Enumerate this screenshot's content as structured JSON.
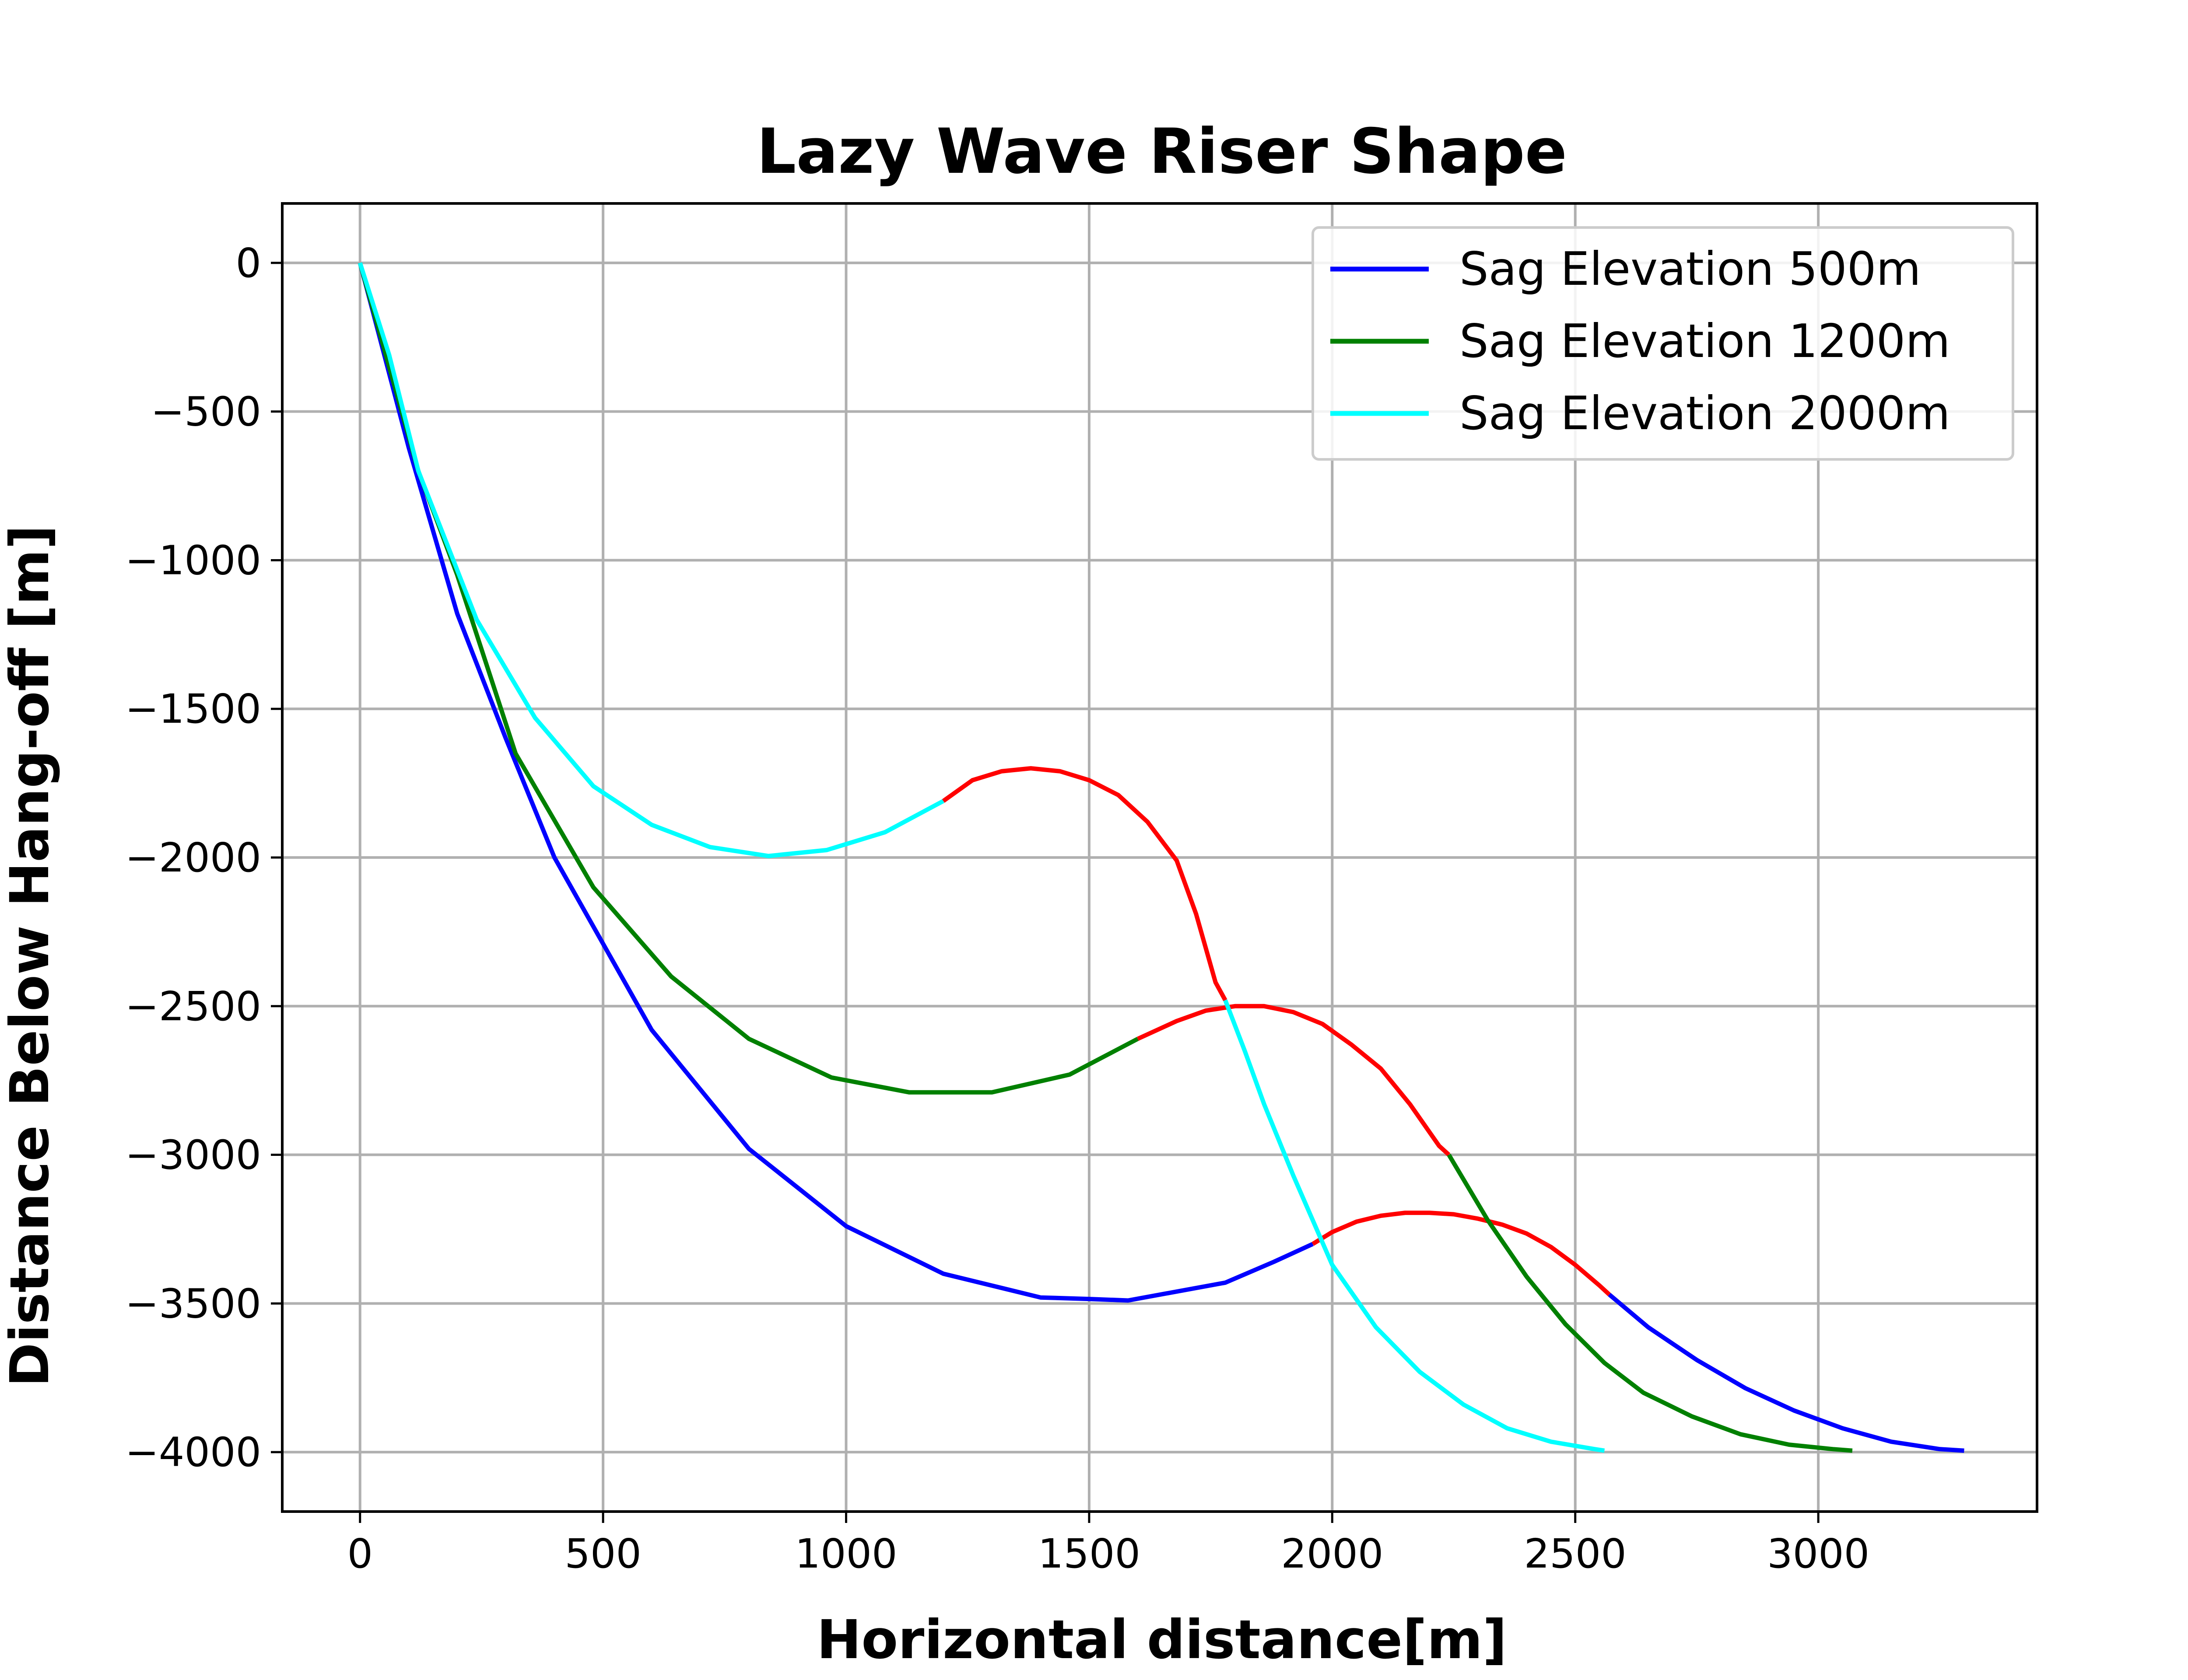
{
  "chart_data": {
    "type": "line",
    "title": "Lazy Wave Riser Shape",
    "xlabel": "Horizontal distance[m]",
    "ylabel": "Distance Below Hang-off [m]",
    "xlim": [
      -160,
      3450
    ],
    "ylim": [
      -4200,
      200
    ],
    "xticks": [
      0,
      500,
      1000,
      1500,
      2000,
      2500,
      3000
    ],
    "yticks": [
      0,
      -500,
      -1000,
      -1500,
      -2000,
      -2500,
      -3000,
      -3500,
      -4000
    ],
    "xtick_labels": [
      "0",
      "500",
      "1000",
      "1500",
      "2000",
      "2500",
      "3000"
    ],
    "ytick_labels": [
      "0",
      "−500",
      "−1000",
      "−1500",
      "−2000",
      "−2500",
      "−3000",
      "−3500",
      "−4000"
    ],
    "grid": true,
    "legend_position": "top-right",
    "buoyancy_color": "#ff0000",
    "series": [
      {
        "name": "Sag Elevation 500m",
        "color": "#0000ff",
        "x": [
          0,
          100,
          200,
          300,
          400,
          500,
          600,
          700,
          800,
          900,
          1000,
          1100,
          1200,
          1300,
          1400,
          1500,
          1580,
          1780,
          1880,
          1960
        ],
        "y": [
          0,
          -620,
          -1180,
          -1600,
          -2000,
          -2290,
          -2580,
          -2780,
          -2980,
          -3110,
          -3240,
          -3320,
          -3400,
          -3440,
          -3480,
          -3485,
          -3490,
          -3430,
          -3360,
          -3300
        ],
        "buoyancy_x": [
          1960,
          2000,
          2050,
          2100,
          2150,
          2200,
          2250,
          2300,
          2350,
          2400,
          2450,
          2500,
          2550,
          2570
        ],
        "buoyancy_y": [
          -3300,
          -3260,
          -3225,
          -3205,
          -3195,
          -3195,
          -3200,
          -3215,
          -3235,
          -3265,
          -3310,
          -3370,
          -3440,
          -3470
        ],
        "tail_x": [
          2570,
          2650,
          2750,
          2850,
          2950,
          3050,
          3150,
          3250,
          3300
        ],
        "tail_y": [
          -3470,
          -3580,
          -3690,
          -3785,
          -3860,
          -3920,
          -3965,
          -3990,
          -3995
        ]
      },
      {
        "name": "Sag Elevation 1200m",
        "color": "#008000",
        "x": [
          0,
          120,
          200,
          320,
          480,
          640,
          800,
          970,
          1130,
          1300,
          1460,
          1600
        ],
        "y": [
          0,
          -700,
          -1050,
          -1650,
          -2100,
          -2400,
          -2610,
          -2740,
          -2790,
          -2790,
          -2730,
          -2610
        ],
        "buoyancy_x": [
          1600,
          1680,
          1740,
          1800,
          1860,
          1920,
          1980,
          2040,
          2100,
          2160,
          2220,
          2240
        ],
        "buoyancy_y": [
          -2610,
          -2550,
          -2515,
          -2500,
          -2500,
          -2520,
          -2560,
          -2630,
          -2710,
          -2830,
          -2970,
          -3000
        ],
        "tail_x": [
          2240,
          2320,
          2400,
          2480,
          2560,
          2640,
          2740,
          2840,
          2940,
          3030,
          3070
        ],
        "tail_y": [
          -3000,
          -3220,
          -3410,
          -3570,
          -3700,
          -3800,
          -3880,
          -3940,
          -3975,
          -3990,
          -3995
        ]
      },
      {
        "name": "Sag Elevation 2000m",
        "color": "#00ffff",
        "x": [
          0,
          60,
          120,
          240,
          360,
          480,
          600,
          720,
          840,
          960,
          1080,
          1200
        ],
        "y": [
          0,
          -310,
          -700,
          -1200,
          -1530,
          -1760,
          -1890,
          -1965,
          -1995,
          -1975,
          -1915,
          -1810
        ],
        "buoyancy_x": [
          1200,
          1260,
          1320,
          1380,
          1440,
          1500,
          1560,
          1620,
          1680,
          1720,
          1760,
          1780
        ],
        "buoyancy_y": [
          -1810,
          -1740,
          -1710,
          -1700,
          -1710,
          -1740,
          -1790,
          -1880,
          -2010,
          -2190,
          -2420,
          -2480
        ],
        "tail_x": [
          1780,
          1820,
          1860,
          1920,
          2000,
          2090,
          2180,
          2270,
          2360,
          2450,
          2540,
          2560
        ],
        "tail_y": [
          -2480,
          -2650,
          -2830,
          -3070,
          -3370,
          -3580,
          -3730,
          -3840,
          -3920,
          -3965,
          -3990,
          -3995
        ]
      }
    ]
  }
}
